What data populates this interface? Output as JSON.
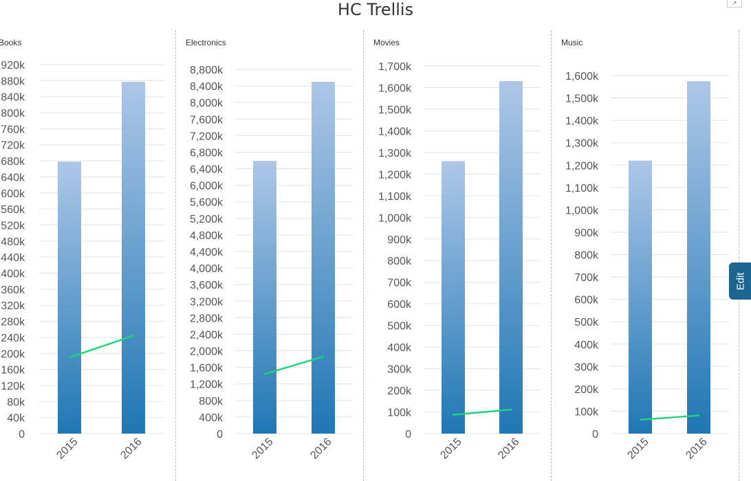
{
  "title": "HC Trellis",
  "edit_label": "Edit",
  "colors": {
    "bar_top": "#aec7e8",
    "bar_bottom": "#1f77b4",
    "line": "#1fd47a",
    "grid": "#e3e3e3",
    "tick_text": "#555555"
  },
  "chart_data": [
    {
      "type": "bar",
      "title": "Books",
      "categories": [
        "2015",
        "2016"
      ],
      "series": [
        {
          "type": "bar",
          "values": [
            678000,
            877000
          ]
        },
        {
          "type": "line",
          "values": [
            190000,
            244000
          ]
        }
      ],
      "ylim": [
        0,
        920000
      ],
      "ytick_step": 40000,
      "yticks": [
        "0",
        "40k",
        "80k",
        "120k",
        "160k",
        "200k",
        "240k",
        "280k",
        "320k",
        "360k",
        "400k",
        "440k",
        "480k",
        "520k",
        "560k",
        "600k",
        "640k",
        "680k",
        "720k",
        "760k",
        "800k",
        "840k",
        "880k",
        "920k"
      ],
      "grid": true
    },
    {
      "type": "bar",
      "title": "Electronics",
      "categories": [
        "2015",
        "2016"
      ],
      "series": [
        {
          "type": "bar",
          "values": [
            6590000,
            8500000
          ]
        },
        {
          "type": "line",
          "values": [
            1440000,
            1860000
          ]
        }
      ],
      "ylim": [
        0,
        8800000
      ],
      "ytick_step": 400000,
      "yticks": [
        "0",
        "400k",
        "800k",
        "1,200k",
        "1,600k",
        "2,000k",
        "2,400k",
        "2,800k",
        "3,200k",
        "3,600k",
        "4,000k",
        "4,400k",
        "4,800k",
        "5,200k",
        "5,600k",
        "6,000k",
        "6,400k",
        "6,800k",
        "7,200k",
        "7,600k",
        "8,000k",
        "8,400k",
        "8,800k"
      ],
      "grid": true
    },
    {
      "type": "bar",
      "title": "Movies",
      "categories": [
        "2015",
        "2016"
      ],
      "series": [
        {
          "type": "bar",
          "values": [
            1260000,
            1630000
          ]
        },
        {
          "type": "line",
          "values": [
            87000,
            111000
          ]
        }
      ],
      "ylim": [
        0,
        1700000
      ],
      "ytick_step": 100000,
      "yticks": [
        "0",
        "100k",
        "200k",
        "300k",
        "400k",
        "500k",
        "600k",
        "700k",
        "800k",
        "900k",
        "1,000k",
        "1,100k",
        "1,200k",
        "1,300k",
        "1,400k",
        "1,500k",
        "1,600k",
        "1,700k"
      ],
      "grid": true
    },
    {
      "type": "bar",
      "title": "Music",
      "categories": [
        "2015",
        "2016"
      ],
      "series": [
        {
          "type": "bar",
          "values": [
            1220000,
            1575000
          ]
        },
        {
          "type": "line",
          "values": [
            62000,
            81000
          ]
        }
      ],
      "ylim": [
        0,
        1600000
      ],
      "ytick_step": 100000,
      "yticks": [
        "0",
        "100k",
        "200k",
        "300k",
        "400k",
        "500k",
        "600k",
        "700k",
        "800k",
        "900k",
        "1,000k",
        "1,100k",
        "1,200k",
        "1,300k",
        "1,400k",
        "1,500k",
        "1,600k"
      ],
      "grid": true
    }
  ]
}
